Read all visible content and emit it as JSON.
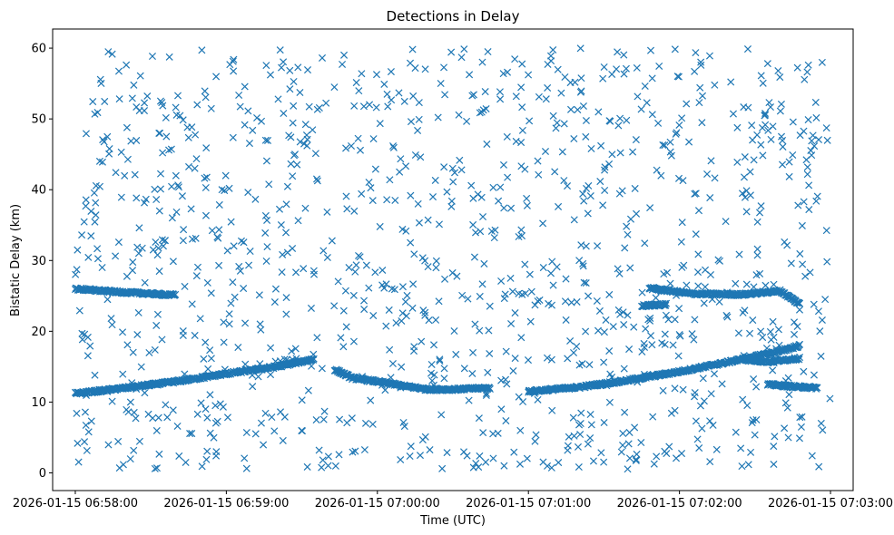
{
  "chart_data": {
    "type": "scatter",
    "title": "Detections in Delay",
    "xlabel": "Time (UTC)",
    "ylabel": "Bistatic Delay (km)",
    "marker": "x",
    "color": "#1f77b4",
    "grid": false,
    "legend": "none",
    "xlim": [
      "2026-01-15 06:57:51",
      "2026-01-15 07:03:09"
    ],
    "ylim": [
      -2.5,
      62.7
    ],
    "x_ticks": [
      "2026-01-15 06:58:00",
      "2026-01-15 06:59:00",
      "2026-01-15 07:00:00",
      "2026-01-15 07:01:00",
      "2026-01-15 07:02:00",
      "2026-01-15 07:03:00"
    ],
    "y_ticks": [
      0,
      10,
      20,
      30,
      40,
      50,
      60
    ],
    "tracks": [
      {
        "x": [
          "2026-01-15 06:58:00",
          "2026-01-15 06:58:20",
          "2026-01-15 06:58:40",
          "2026-01-15 06:59:00",
          "2026-01-15 06:59:20",
          "2026-01-15 06:59:35"
        ],
        "y": [
          11.2,
          12.0,
          12.9,
          14.0,
          15.0,
          16.1
        ]
      },
      {
        "x": [
          "2026-01-15 06:59:43",
          "2026-01-15 06:59:50",
          "2026-01-15 07:00:00",
          "2026-01-15 07:00:10",
          "2026-01-15 07:00:20",
          "2026-01-15 07:00:30",
          "2026-01-15 07:00:45"
        ],
        "y": [
          14.6,
          13.4,
          12.9,
          12.3,
          11.8,
          11.8,
          12.0
        ]
      },
      {
        "x": [
          "2026-01-15 07:01:00",
          "2026-01-15 07:01:20",
          "2026-01-15 07:01:40",
          "2026-01-15 07:02:00",
          "2026-01-15 07:02:20",
          "2026-01-15 07:02:40",
          "2026-01-15 07:02:48"
        ],
        "y": [
          11.5,
          12.1,
          13.1,
          14.3,
          15.7,
          17.2,
          18.0
        ]
      },
      {
        "x": [
          "2026-01-15 06:58:00",
          "2026-01-15 06:58:15",
          "2026-01-15 06:58:30",
          "2026-01-15 06:58:40"
        ],
        "y": [
          26.0,
          25.6,
          25.3,
          25.1
        ]
      },
      {
        "x": [
          "2026-01-15 07:01:45",
          "2026-01-15 07:01:55"
        ],
        "y": [
          23.6,
          23.8
        ]
      },
      {
        "x": [
          "2026-01-15 07:01:48",
          "2026-01-15 07:02:05",
          "2026-01-15 07:02:25",
          "2026-01-15 07:02:40",
          "2026-01-15 07:02:48"
        ],
        "y": [
          26.1,
          25.3,
          25.2,
          25.7,
          23.8
        ]
      },
      {
        "x": [
          "2026-01-15 07:02:26",
          "2026-01-15 07:02:35",
          "2026-01-15 07:02:48"
        ],
        "y": [
          16.0,
          15.7,
          16.2
        ]
      },
      {
        "x": [
          "2026-01-15 07:02:35",
          "2026-01-15 07:02:45",
          "2026-01-15 07:02:55"
        ],
        "y": [
          12.5,
          12.2,
          12.0
        ]
      }
    ],
    "noise_band": {
      "x": [
        "2026-01-15 06:58:00",
        "2026-01-15 07:03:00"
      ],
      "y": [
        0.5,
        60
      ]
    }
  }
}
